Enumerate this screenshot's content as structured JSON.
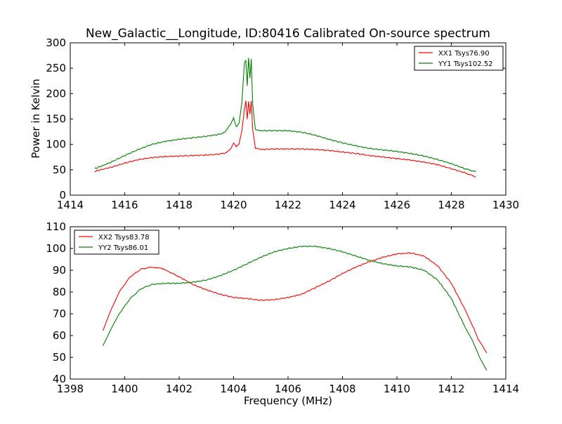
{
  "figure": {
    "title": "New_Galactic__Longitude, ID:80416 Calibrated On-source spectrum",
    "ylabel": "Power in Kelvin",
    "xlabel": "Frequency (MHz)"
  },
  "chart_data": [
    {
      "type": "line",
      "xlim": [
        1414,
        1430
      ],
      "ylim": [
        0,
        300
      ],
      "xticks": [
        1414,
        1416,
        1418,
        1420,
        1422,
        1424,
        1426,
        1428,
        1430
      ],
      "yticks": [
        0,
        50,
        100,
        150,
        200,
        250,
        300
      ],
      "grid": false,
      "legend_position": "top-right",
      "series": [
        {
          "name": "XX1 Tsys76.90",
          "color": "#ff0000",
          "x": [
            1414.9,
            1415.5,
            1416.0,
            1416.5,
            1417.0,
            1417.5,
            1418.0,
            1418.5,
            1419.0,
            1419.5,
            1419.7,
            1419.9,
            1420.0,
            1420.1,
            1420.2,
            1420.3,
            1420.4,
            1420.45,
            1420.5,
            1420.55,
            1420.6,
            1420.65,
            1420.7,
            1420.8,
            1421.0,
            1421.5,
            1422.0,
            1422.5,
            1423.0,
            1423.5,
            1424.0,
            1424.5,
            1425.0,
            1425.5,
            1426.0,
            1426.5,
            1427.0,
            1427.5,
            1428.0,
            1428.5,
            1428.9
          ],
          "y": [
            47,
            55,
            63,
            70,
            74,
            76,
            77,
            78,
            79,
            81,
            83,
            92,
            103,
            95,
            100,
            125,
            170,
            186,
            150,
            185,
            160,
            186,
            130,
            92,
            90,
            91,
            91,
            91,
            90,
            88,
            85,
            82,
            78,
            75,
            72,
            69,
            65,
            60,
            52,
            44,
            36
          ]
        },
        {
          "name": "YY1 Tsys102.52",
          "color": "#008000",
          "x": [
            1414.9,
            1415.5,
            1416.0,
            1416.5,
            1417.0,
            1417.5,
            1418.0,
            1418.5,
            1419.0,
            1419.5,
            1419.7,
            1419.9,
            1420.0,
            1420.1,
            1420.2,
            1420.3,
            1420.4,
            1420.45,
            1420.5,
            1420.55,
            1420.6,
            1420.65,
            1420.7,
            1420.8,
            1421.0,
            1421.5,
            1422.0,
            1422.5,
            1423.0,
            1423.5,
            1424.0,
            1424.5,
            1425.0,
            1425.5,
            1426.0,
            1426.5,
            1427.0,
            1427.5,
            1428.0,
            1428.5,
            1428.9
          ],
          "y": [
            52,
            65,
            78,
            90,
            100,
            106,
            110,
            113,
            116,
            120,
            125,
            140,
            152,
            135,
            142,
            180,
            260,
            265,
            215,
            270,
            230,
            268,
            180,
            130,
            127,
            127,
            127,
            124,
            118,
            110,
            103,
            97,
            92,
            89,
            86,
            82,
            77,
            70,
            62,
            52,
            46
          ]
        }
      ]
    },
    {
      "type": "line",
      "xlim": [
        1398,
        1414
      ],
      "ylim": [
        40,
        110
      ],
      "xticks": [
        1398,
        1400,
        1402,
        1404,
        1406,
        1408,
        1410,
        1412,
        1414
      ],
      "yticks": [
        40,
        50,
        60,
        70,
        80,
        90,
        100,
        110
      ],
      "grid": false,
      "legend_position": "top-left",
      "series": [
        {
          "name": "XX2 Tsys83.78",
          "color": "#ff0000",
          "x": [
            1399.2,
            1399.5,
            1399.8,
            1400.2,
            1400.6,
            1401.0,
            1401.3,
            1401.6,
            1402.0,
            1402.5,
            1403.0,
            1403.5,
            1404.0,
            1404.5,
            1405.0,
            1405.5,
            1406.0,
            1406.5,
            1407.0,
            1407.5,
            1408.0,
            1408.5,
            1409.0,
            1409.5,
            1410.0,
            1410.5,
            1411.0,
            1411.5,
            1412.0,
            1412.5,
            1412.8,
            1413.0,
            1413.3
          ],
          "y": [
            62,
            72,
            80,
            87,
            90.5,
            91.5,
            91,
            89.5,
            87,
            83.5,
            81,
            79,
            77.5,
            77,
            76.2,
            76.5,
            77.5,
            79,
            82,
            85,
            88.5,
            91.5,
            94,
            96,
            97.5,
            98,
            96.5,
            92,
            84,
            72,
            64,
            58,
            52
          ]
        },
        {
          "name": "YY2 Tsys86.01",
          "color": "#008000",
          "x": [
            1399.2,
            1399.5,
            1399.8,
            1400.2,
            1400.6,
            1401.0,
            1401.5,
            1402.0,
            1402.5,
            1403.0,
            1403.5,
            1404.0,
            1404.5,
            1405.0,
            1405.5,
            1406.0,
            1406.5,
            1407.0,
            1407.5,
            1408.0,
            1408.5,
            1409.0,
            1409.5,
            1410.0,
            1410.5,
            1411.0,
            1411.5,
            1412.0,
            1412.5,
            1412.8,
            1413.0,
            1413.3
          ],
          "y": [
            55.5,
            63,
            70,
            77,
            81.5,
            83.5,
            84,
            84,
            84.5,
            85.5,
            87.5,
            90,
            93,
            96,
            98.5,
            100,
            101,
            101,
            100,
            98.5,
            96.5,
            94.5,
            93,
            92,
            91.5,
            90,
            85.5,
            77,
            64,
            57,
            51,
            44
          ]
        }
      ]
    }
  ]
}
